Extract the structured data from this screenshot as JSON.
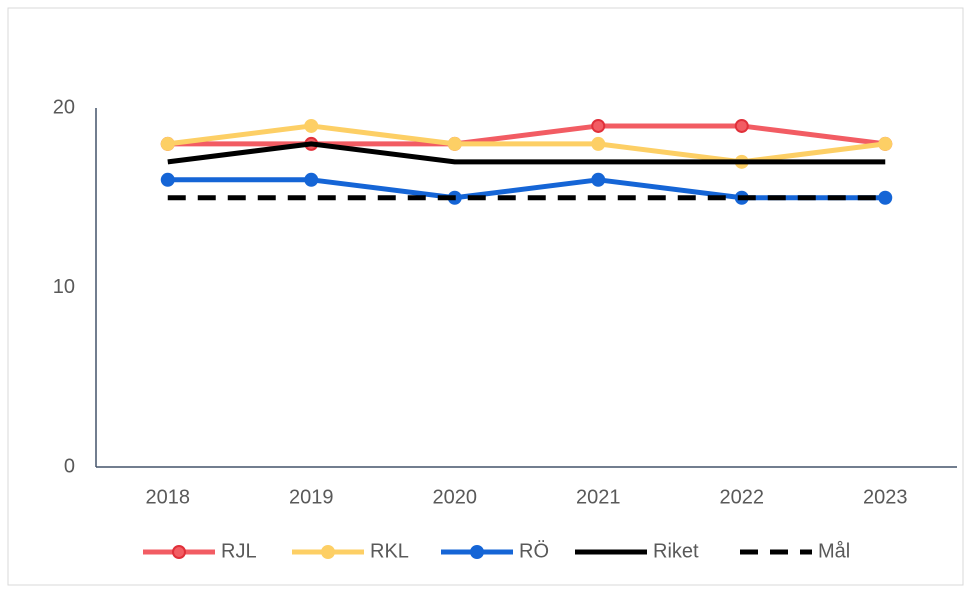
{
  "chart_data": {
    "type": "line",
    "categories": [
      "2018",
      "2019",
      "2020",
      "2021",
      "2022",
      "2023"
    ],
    "series": [
      {
        "name": "RJL",
        "color": "#f25c63",
        "values": [
          18,
          18,
          18,
          19,
          19,
          18
        ],
        "marker": true,
        "dash": false
      },
      {
        "name": "RKL",
        "color": "#fdcf65",
        "values": [
          18,
          19,
          18,
          18,
          17,
          18
        ],
        "marker": true,
        "dash": false
      },
      {
        "name": "RÖ",
        "color": "#1565d6",
        "values": [
          16,
          16,
          15,
          16,
          15,
          15
        ],
        "marker": true,
        "dash": false
      },
      {
        "name": "Riket",
        "color": "#000000",
        "values": [
          17,
          18,
          17,
          17,
          17,
          17
        ],
        "marker": false,
        "dash": false
      },
      {
        "name": "Mål",
        "color": "#000000",
        "values": [
          15,
          15,
          15,
          15,
          15,
          15
        ],
        "marker": false,
        "dash": true
      }
    ],
    "ylim": [
      0,
      20
    ],
    "yticks": [
      0,
      10,
      20
    ],
    "grid": false,
    "legend": "bottom"
  }
}
